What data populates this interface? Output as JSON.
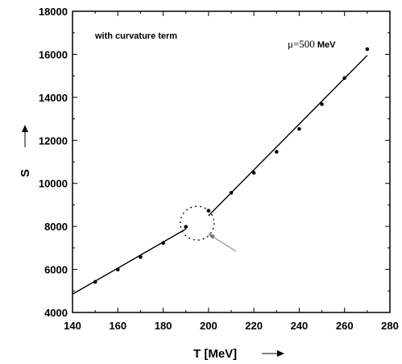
{
  "chart_data": {
    "type": "scatter",
    "xlabel": "T [MeV]",
    "ylabel": "S",
    "xlim": [
      140,
      280
    ],
    "ylim": [
      4000,
      18000
    ],
    "x_ticks": [
      140,
      160,
      180,
      200,
      220,
      240,
      260,
      280
    ],
    "y_ticks": [
      4000,
      6000,
      8000,
      10000,
      12000,
      14000,
      16000,
      18000
    ],
    "grid": false,
    "annotations": {
      "left_text": "with curvature term",
      "mu_symbol": "μ=500",
      "mu_unit": "MeV"
    },
    "series": [
      {
        "kind": "points",
        "x": [
          150,
          160,
          170,
          180,
          190,
          200,
          210,
          220,
          230,
          240,
          250,
          260,
          270
        ],
        "y": [
          5420,
          5990,
          6580,
          7230,
          7980,
          8730,
          9560,
          10490,
          11470,
          12530,
          13680,
          14900,
          16240
        ]
      },
      {
        "kind": "fit-line",
        "x": [
          140,
          190
        ],
        "y": [
          4850,
          7880
        ]
      },
      {
        "kind": "fit-line",
        "x": [
          200,
          270
        ],
        "y": [
          8500,
          15950
        ]
      }
    ],
    "highlight": {
      "shape": "dotted-circle",
      "center": [
        195,
        8150
      ]
    }
  }
}
